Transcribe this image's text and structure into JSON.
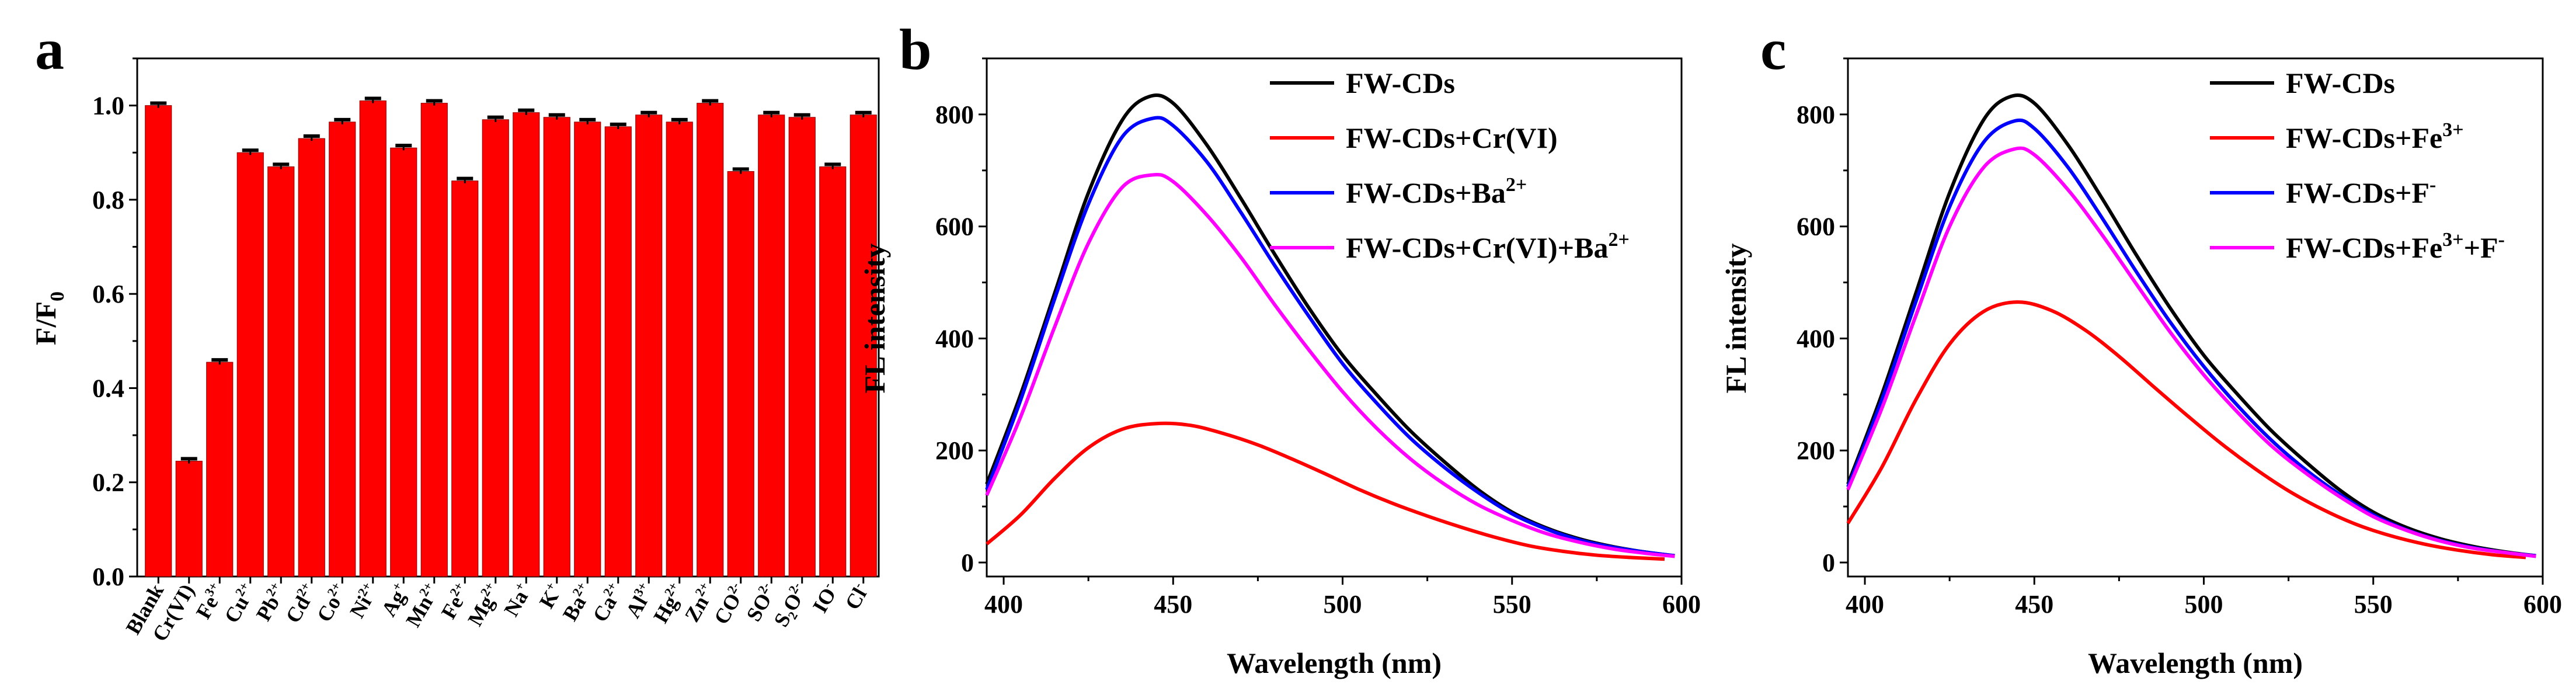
{
  "chart_data": [
    {
      "panel": "a",
      "type": "bar",
      "ylabel": "F/F",
      "ylabel_sub": "0",
      "ylim": [
        0,
        1.1
      ],
      "yticks": [
        "0.0",
        "0.2",
        "0.4",
        "0.6",
        "0.8",
        "1.0"
      ],
      "bar_color": "#ff0000",
      "categories": [
        {
          "base": "Blank",
          "sup": ""
        },
        {
          "base": "Cr(VI)",
          "sup": ""
        },
        {
          "base": "Fe",
          "sup": "3+"
        },
        {
          "base": "Cu",
          "sup": "2+"
        },
        {
          "base": "Pb",
          "sup": "2+"
        },
        {
          "base": "Cd",
          "sup": "2+"
        },
        {
          "base": "Co",
          "sup": "2+"
        },
        {
          "base": "Ni",
          "sup": "2+"
        },
        {
          "base": "Ag",
          "sup": "+"
        },
        {
          "base": "Mn",
          "sup": "2+"
        },
        {
          "base": "Fe",
          "sup": "2+"
        },
        {
          "base": "Mg",
          "sup": "2+"
        },
        {
          "base": "Na",
          "sup": "+"
        },
        {
          "base": "K",
          "sup": "+"
        },
        {
          "base": "Ba",
          "sup": "2+"
        },
        {
          "base": "Ca",
          "sup": "2+"
        },
        {
          "base": "Al",
          "sup": "3+"
        },
        {
          "base": "Hg",
          "sup": "2+"
        },
        {
          "base": "Zn",
          "sup": "2+"
        },
        {
          "base": "CO",
          "sup": "2-"
        },
        {
          "base": "SO",
          "sup": "2-"
        },
        {
          "base": "S₂O",
          "sup": "2-"
        },
        {
          "base": "IO",
          "sup": "-"
        },
        {
          "base": "Cl",
          "sup": "-"
        }
      ],
      "values": [
        1.0,
        0.245,
        0.455,
        0.9,
        0.87,
        0.93,
        0.965,
        1.01,
        0.91,
        1.005,
        0.84,
        0.97,
        0.985,
        0.975,
        0.965,
        0.955,
        0.98,
        0.965,
        1.005,
        0.86,
        0.98,
        0.975,
        0.87,
        0.98
      ],
      "errors": [
        0.005,
        0.005,
        0.005,
        0.005,
        0.005,
        0.005,
        0.005,
        0.005,
        0.005,
        0.005,
        0.005,
        0.005,
        0.005,
        0.005,
        0.005,
        0.005,
        0.005,
        0.005,
        0.005,
        0.005,
        0.005,
        0.005,
        0.005,
        0.005
      ]
    },
    {
      "panel": "b",
      "type": "line",
      "xlabel": "Wavelength (nm)",
      "ylabel": "FL intensity",
      "xlim": [
        395,
        600
      ],
      "ylim": [
        -25,
        900
      ],
      "xticks": [
        400,
        450,
        500,
        550,
        600
      ],
      "yticks": [
        0,
        200,
        400,
        600,
        800
      ],
      "legend": [
        {
          "label": "FW-CDs",
          "sup": ""
        },
        {
          "label": "FW-CDs+Cr(VI)",
          "sup": ""
        },
        {
          "label": "FW-CDs+Ba",
          "sup": "2+"
        },
        {
          "label": "FW-CDs+Cr(VI)+Ba",
          "sup": "2+"
        }
      ],
      "series": [
        {
          "name": "FW-CDs",
          "color": "#000000",
          "x": [
            395,
            405,
            415,
            425,
            435,
            443,
            450,
            460,
            470,
            480,
            490,
            500,
            510,
            520,
            530,
            540,
            550,
            560,
            570,
            580,
            590,
            598
          ],
          "y": [
            140,
            300,
            480,
            660,
            790,
            832,
            820,
            745,
            650,
            550,
            455,
            370,
            300,
            235,
            180,
            130,
            90,
            62,
            42,
            28,
            18,
            12
          ]
        },
        {
          "name": "FW-CDs+Cr(VI)",
          "color": "#ff0000",
          "x": [
            395,
            405,
            415,
            425,
            435,
            445,
            455,
            465,
            475,
            485,
            495,
            505,
            515,
            525,
            535,
            545,
            555,
            565,
            575,
            585,
            595
          ],
          "y": [
            33,
            85,
            150,
            205,
            238,
            248,
            245,
            230,
            210,
            185,
            158,
            130,
            105,
            83,
            63,
            45,
            30,
            20,
            13,
            9,
            6
          ]
        },
        {
          "name": "FW-CDs+Ba2+",
          "color": "#0000ff",
          "x": [
            395,
            405,
            415,
            425,
            435,
            444,
            450,
            460,
            470,
            480,
            490,
            500,
            510,
            520,
            530,
            540,
            550,
            560,
            570,
            580,
            590,
            598
          ],
          "y": [
            130,
            290,
            470,
            640,
            760,
            793,
            780,
            715,
            625,
            530,
            440,
            355,
            285,
            222,
            170,
            125,
            87,
            60,
            40,
            27,
            18,
            12
          ]
        },
        {
          "name": "FW-CDs+Cr(VI)+Ba2+",
          "color": "#ff00ff",
          "x": [
            395,
            405,
            415,
            425,
            435,
            444,
            450,
            460,
            470,
            480,
            490,
            500,
            510,
            520,
            530,
            540,
            550,
            560,
            570,
            580,
            590,
            598
          ],
          "y": [
            120,
            260,
            420,
            570,
            670,
            692,
            680,
            620,
            545,
            460,
            380,
            305,
            240,
            185,
            140,
            103,
            75,
            52,
            36,
            24,
            16,
            11
          ]
        }
      ]
    },
    {
      "panel": "c",
      "type": "line",
      "xlabel": "Wavelength (nm)",
      "ylabel": "FL intensity",
      "xlim": [
        395,
        600
      ],
      "ylim": [
        -25,
        900
      ],
      "xticks": [
        400,
        450,
        500,
        550,
        600
      ],
      "yticks": [
        0,
        200,
        400,
        600,
        800
      ],
      "legend": [
        {
          "label": "FW-CDs",
          "sup": ""
        },
        {
          "label": "FW-CDs+Fe",
          "sup": "3+"
        },
        {
          "label": "FW-CDs+F",
          "sup": "-"
        },
        {
          "label": "FW-CDs+Fe",
          "sup": "3+",
          "tail": "+F",
          "tail_sup": "-"
        }
      ],
      "series": [
        {
          "name": "FW-CDs",
          "color": "#000000",
          "x": [
            395,
            405,
            415,
            425,
            435,
            443,
            450,
            460,
            470,
            480,
            490,
            500,
            510,
            520,
            530,
            540,
            550,
            560,
            570,
            580,
            590,
            598
          ],
          "y": [
            140,
            300,
            480,
            660,
            790,
            832,
            820,
            745,
            650,
            550,
            455,
            370,
            300,
            235,
            180,
            130,
            90,
            62,
            42,
            28,
            18,
            12
          ]
        },
        {
          "name": "FW-CDs+Fe3+",
          "color": "#ff0000",
          "x": [
            395,
            405,
            415,
            425,
            435,
            445,
            455,
            465,
            475,
            485,
            495,
            505,
            515,
            525,
            535,
            545,
            555,
            565,
            575,
            585,
            595
          ],
          "y": [
            70,
            170,
            290,
            390,
            448,
            465,
            450,
            415,
            368,
            315,
            263,
            213,
            168,
            128,
            95,
            68,
            48,
            33,
            22,
            14,
            9
          ]
        },
        {
          "name": "FW-CDs+F-",
          "color": "#0000ff",
          "x": [
            395,
            405,
            415,
            425,
            435,
            444,
            450,
            460,
            470,
            480,
            490,
            500,
            510,
            520,
            530,
            540,
            550,
            560,
            570,
            580,
            590,
            598
          ],
          "y": [
            135,
            290,
            465,
            635,
            750,
            788,
            775,
            705,
            615,
            520,
            430,
            350,
            280,
            218,
            166,
            122,
            85,
            58,
            39,
            26,
            17,
            12
          ]
        },
        {
          "name": "FW-CDs+Fe3++F-",
          "color": "#ff00ff",
          "x": [
            395,
            405,
            415,
            425,
            435,
            444,
            450,
            460,
            470,
            480,
            490,
            500,
            510,
            520,
            530,
            540,
            550,
            560,
            570,
            580,
            590,
            598
          ],
          "y": [
            130,
            275,
            440,
            600,
            705,
            738,
            728,
            665,
            585,
            498,
            412,
            335,
            268,
            208,
            160,
            118,
            82,
            57,
            38,
            25,
            17,
            11
          ]
        }
      ]
    }
  ]
}
